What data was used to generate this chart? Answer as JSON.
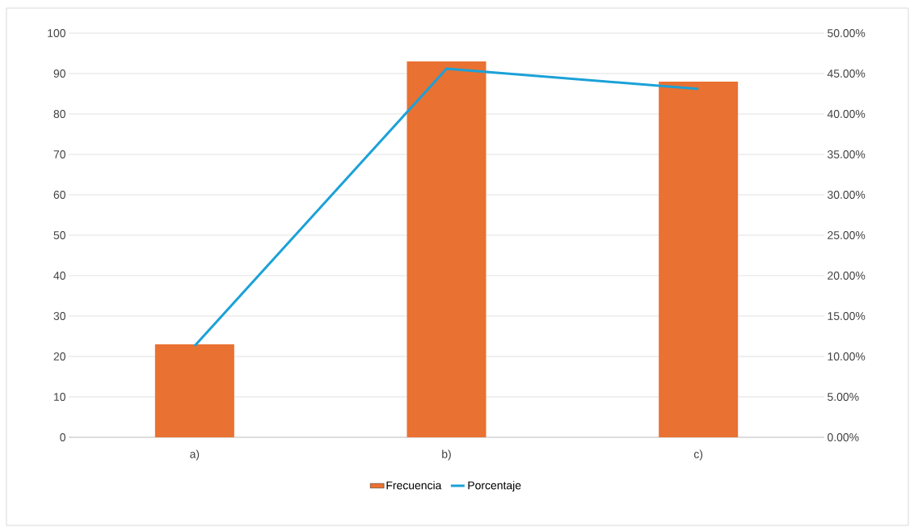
{
  "chart_data": {
    "type": "bar",
    "categories": [
      "a)",
      "b)",
      "c)"
    ],
    "series": [
      {
        "name": "Frecuencia",
        "color": "#e97132",
        "values": [
          23,
          93,
          88
        ]
      },
      {
        "name": "Porcentaje",
        "type": "line",
        "axis": "y2",
        "color": "#1ba1d8",
        "values": [
          11.3,
          45.6,
          43.1
        ]
      }
    ],
    "ylim": [
      0,
      100
    ],
    "yticks": [
      0,
      10,
      20,
      30,
      40,
      50,
      60,
      70,
      80,
      90,
      100
    ],
    "y2lim": [
      0,
      50
    ],
    "y2ticks": [
      {
        "value": 0,
        "label": "0.00%"
      },
      {
        "value": 5,
        "label": "5.00%"
      },
      {
        "value": 10,
        "label": "10.00%"
      },
      {
        "value": 15,
        "label": "15.00%"
      },
      {
        "value": 20,
        "label": "20.00%"
      },
      {
        "value": 25,
        "label": "25.00%"
      },
      {
        "value": 30,
        "label": "30.00%"
      },
      {
        "value": 35,
        "label": "35.00%"
      },
      {
        "value": 40,
        "label": "40.00%"
      },
      {
        "value": 45,
        "label": "45.00%"
      },
      {
        "value": 50,
        "label": "50.00%"
      }
    ],
    "grid": "y",
    "legend": "bottom"
  }
}
